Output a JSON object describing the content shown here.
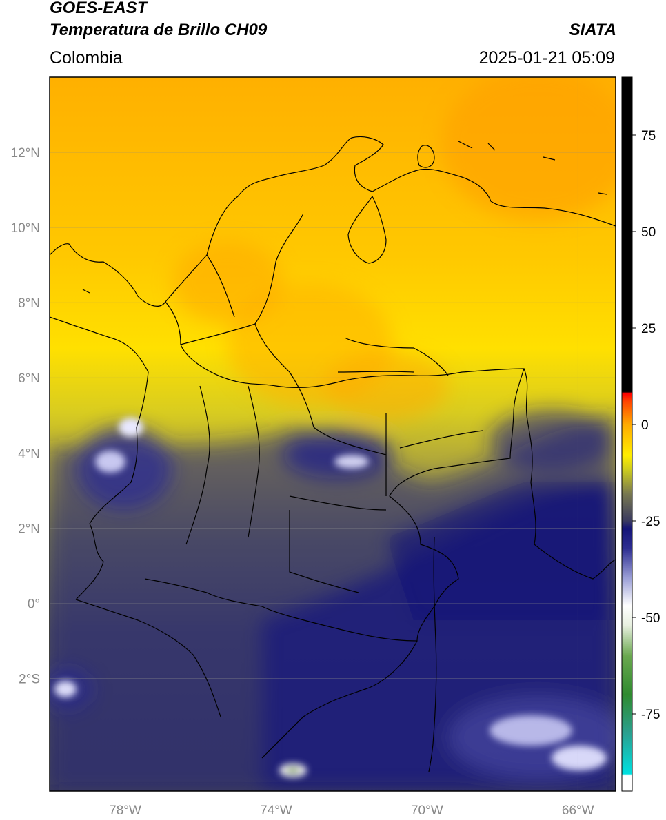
{
  "header": {
    "satellite": "GOES-EAST",
    "product": "Temperatura de Brillo CH09",
    "region": "Colombia",
    "agency": "SIATA",
    "datetime": "2025-01-21 05:09"
  },
  "map": {
    "lon_range": [
      -80,
      -65
    ],
    "lat_range": [
      -5,
      14
    ],
    "lon_ticks": [
      {
        "value": -78,
        "label": "78°W"
      },
      {
        "value": -74,
        "label": "74°W"
      },
      {
        "value": -70,
        "label": "70°W"
      },
      {
        "value": -66,
        "label": "66°W"
      }
    ],
    "lat_ticks": [
      {
        "value": 12,
        "label": "12°N"
      },
      {
        "value": 10,
        "label": "10°N"
      },
      {
        "value": 8,
        "label": "8°N"
      },
      {
        "value": 6,
        "label": "6°N"
      },
      {
        "value": 4,
        "label": "4°N"
      },
      {
        "value": 2,
        "label": "2°N"
      },
      {
        "value": 0,
        "label": "0°"
      },
      {
        "value": -2,
        "label": "2°S"
      }
    ],
    "grid": true
  },
  "colorbar": {
    "range": [
      -95,
      90
    ],
    "ticks": [
      {
        "value": 75,
        "label": "75"
      },
      {
        "value": 50,
        "label": "50"
      },
      {
        "value": 25,
        "label": "25"
      },
      {
        "value": 0,
        "label": "0"
      },
      {
        "value": -25,
        "label": "-25"
      },
      {
        "value": -50,
        "label": "-50"
      },
      {
        "value": -75,
        "label": "-75"
      }
    ],
    "stops": [
      {
        "value": -95,
        "color": "#ffffff"
      },
      {
        "value": -91,
        "color": "#ffffff"
      },
      {
        "value": -90.5,
        "color": "#00e0e0"
      },
      {
        "value": -80,
        "color": "#2aa090"
      },
      {
        "value": -70,
        "color": "#2f8a2f"
      },
      {
        "value": -60,
        "color": "#6aa84f"
      },
      {
        "value": -52,
        "color": "#e8f0e0"
      },
      {
        "value": -47,
        "color": "#ffffff"
      },
      {
        "value": -40,
        "color": "#9ea2d8"
      },
      {
        "value": -32,
        "color": "#2c2c90"
      },
      {
        "value": -27,
        "color": "#141478"
      },
      {
        "value": -25,
        "color": "#3a3a60"
      },
      {
        "value": -18,
        "color": "#787850"
      },
      {
        "value": -12,
        "color": "#c8c820"
      },
      {
        "value": -8,
        "color": "#ffee00"
      },
      {
        "value": 0,
        "color": "#ffaa00"
      },
      {
        "value": 6,
        "color": "#ff4400"
      },
      {
        "value": 8,
        "color": "#ff0000"
      },
      {
        "value": 8.5,
        "color": "#000000"
      },
      {
        "value": 90,
        "color": "#000000"
      }
    ]
  }
}
